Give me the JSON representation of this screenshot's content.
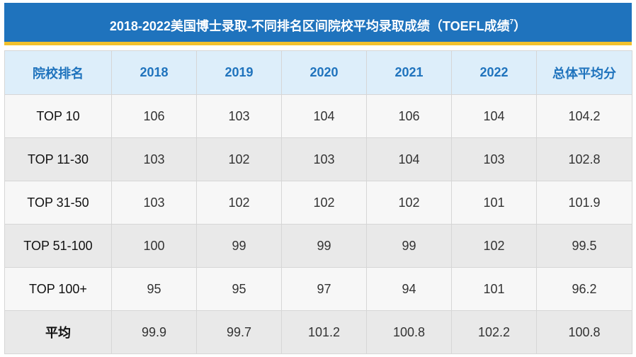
{
  "title": {
    "text": "2018-2022美国博士录取-不同排名区间院校平均录取成绩（TOEFL成绩",
    "sup": "7",
    "close": "）"
  },
  "table": {
    "headers": [
      "院校排名",
      "2018",
      "2019",
      "2020",
      "2021",
      "2022",
      "总体平均分"
    ],
    "rows": [
      [
        "TOP 10",
        "106",
        "103",
        "104",
        "106",
        "104",
        "104.2"
      ],
      [
        "TOP 11-30",
        "103",
        "102",
        "103",
        "104",
        "103",
        "102.8"
      ],
      [
        "TOP 31-50",
        "103",
        "102",
        "102",
        "102",
        "101",
        "101.9"
      ],
      [
        "TOP 51-100",
        "100",
        "99",
        "99",
        "99",
        "102",
        "99.5"
      ],
      [
        "TOP 100+",
        "95",
        "95",
        "97",
        "94",
        "101",
        "96.2"
      ],
      [
        "平均",
        "99.9",
        "99.7",
        "101.2",
        "100.8",
        "102.2",
        "100.8"
      ]
    ]
  },
  "colors": {
    "title_bg": "#1f73bd",
    "title_underline": "#f2c12e",
    "header_bg": "#ddeefa",
    "header_text": "#1f73bd"
  }
}
